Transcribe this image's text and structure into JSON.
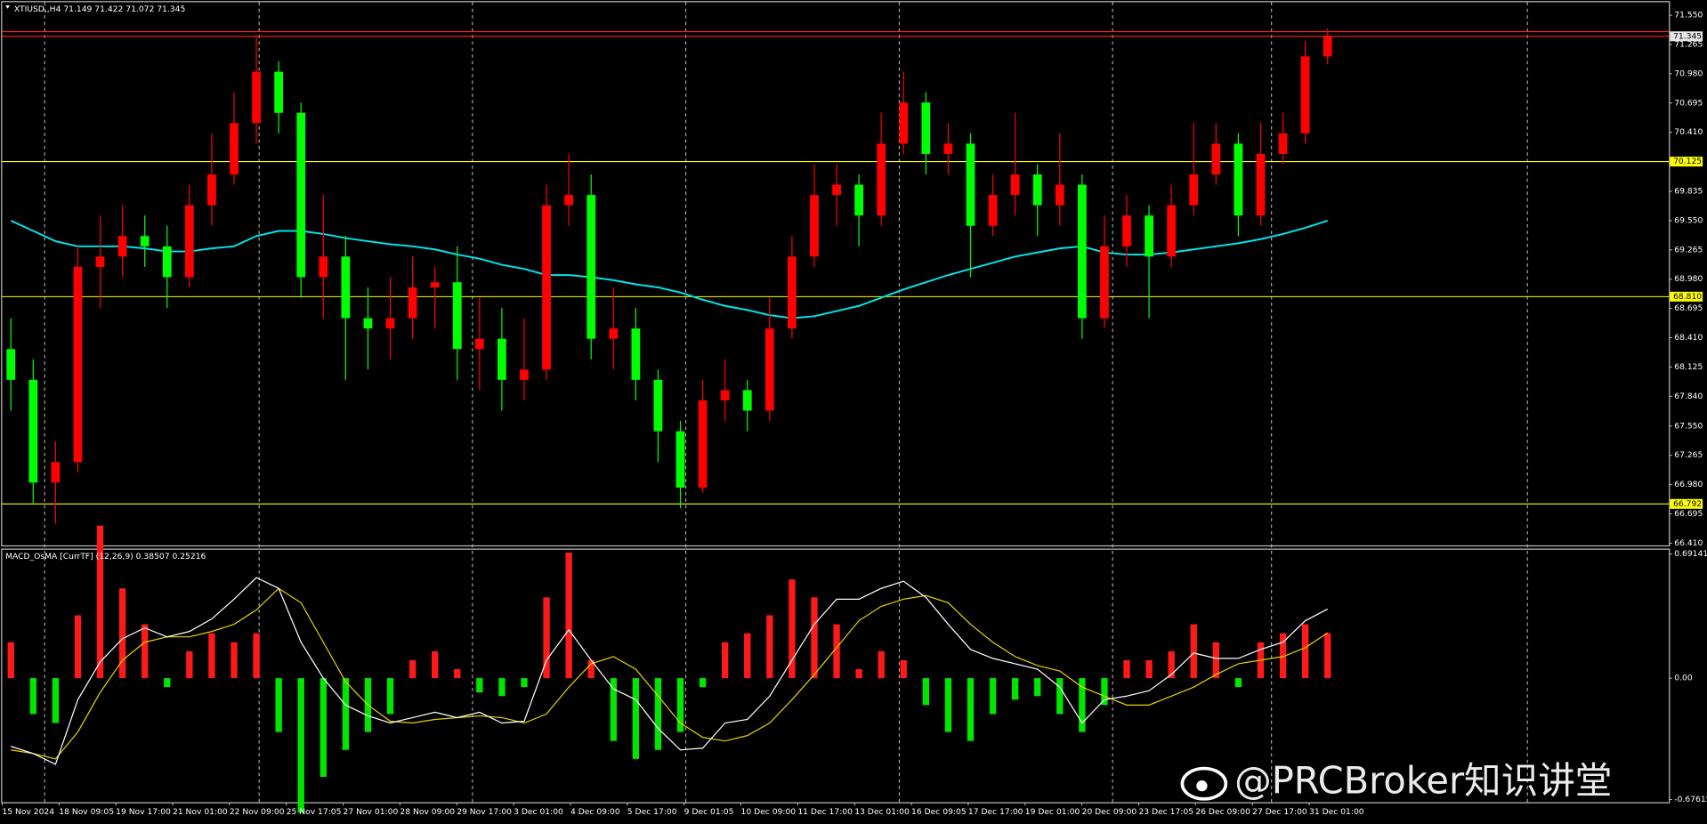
{
  "chart_data": {
    "type": "candlestick",
    "symbol": "XTIUSD,,H4",
    "up_color": "#ff0000",
    "down_color": "#00ff00",
    "open": [
      68.3,
      68.0,
      67.0,
      67.2,
      69.1,
      69.2,
      69.4,
      69.3,
      69.0,
      69.7,
      70.0,
      70.5,
      71.0,
      70.6,
      69.0,
      69.2,
      68.6,
      68.5,
      68.6,
      68.9,
      68.95,
      68.3,
      68.4,
      68.0,
      68.1,
      69.7,
      69.8,
      68.4,
      68.5,
      68.0,
      67.5,
      66.95,
      67.8,
      67.9,
      67.7,
      68.5,
      69.2,
      69.8,
      69.9,
      69.6,
      70.3,
      70.7,
      70.2,
      70.3,
      69.5,
      69.8,
      70.0,
      69.7,
      69.9,
      68.6,
      69.3,
      69.6,
      69.2,
      69.7,
      70.0,
      70.3,
      69.6,
      70.2,
      70.4,
      71.149
    ],
    "high": [
      68.6,
      68.2,
      67.4,
      69.3,
      69.6,
      69.7,
      69.6,
      69.5,
      69.9,
      70.4,
      70.8,
      71.35,
      71.1,
      70.7,
      69.8,
      69.4,
      68.9,
      69.0,
      69.2,
      69.1,
      69.3,
      68.8,
      68.7,
      68.6,
      69.9,
      70.2,
      70.0,
      68.9,
      68.7,
      68.1,
      67.6,
      68.0,
      68.2,
      68.0,
      68.8,
      69.4,
      70.1,
      70.1,
      70.0,
      70.6,
      71.0,
      70.8,
      70.5,
      70.4,
      70.0,
      70.6,
      70.1,
      70.4,
      70.0,
      69.6,
      69.8,
      69.7,
      69.9,
      70.5,
      70.5,
      70.4,
      70.5,
      70.6,
      71.3,
      71.422
    ],
    "low": [
      67.7,
      66.8,
      66.6,
      67.1,
      68.7,
      69.0,
      69.1,
      68.7,
      68.9,
      69.5,
      69.9,
      70.3,
      70.4,
      68.8,
      68.6,
      68.0,
      68.1,
      68.2,
      68.4,
      68.5,
      68.0,
      67.9,
      67.7,
      67.8,
      68.0,
      69.5,
      68.2,
      68.1,
      67.8,
      67.2,
      66.75,
      66.9,
      67.6,
      67.5,
      67.6,
      68.4,
      69.1,
      69.5,
      69.3,
      69.5,
      70.2,
      70.0,
      70.0,
      69.0,
      69.4,
      69.6,
      69.4,
      69.5,
      68.4,
      68.5,
      69.1,
      68.6,
      69.1,
      69.6,
      69.9,
      69.4,
      69.5,
      70.1,
      70.3,
      71.072
    ],
    "close": [
      68.0,
      67.0,
      67.2,
      69.1,
      69.2,
      69.4,
      69.3,
      69.0,
      69.7,
      70.0,
      70.5,
      71.0,
      70.6,
      69.0,
      69.2,
      68.6,
      68.5,
      68.6,
      68.9,
      68.95,
      68.3,
      68.4,
      68.0,
      68.1,
      69.7,
      69.8,
      68.4,
      68.5,
      68.0,
      67.5,
      66.95,
      67.8,
      67.9,
      67.7,
      68.5,
      69.2,
      69.8,
      69.9,
      69.6,
      70.3,
      70.7,
      70.2,
      70.3,
      69.5,
      69.8,
      70.0,
      69.7,
      69.9,
      68.6,
      69.3,
      69.6,
      69.2,
      69.7,
      70.0,
      70.3,
      69.6,
      70.2,
      70.4,
      71.149,
      71.345
    ],
    "ma": {
      "color": "#00e5ee",
      "values": [
        69.55,
        69.45,
        69.35,
        69.3,
        69.3,
        69.3,
        69.28,
        69.25,
        69.25,
        69.28,
        69.3,
        69.4,
        69.45,
        69.45,
        69.42,
        69.38,
        69.35,
        69.32,
        69.3,
        69.27,
        69.22,
        69.18,
        69.12,
        69.08,
        69.02,
        69.02,
        69.0,
        68.97,
        68.93,
        68.9,
        68.85,
        68.78,
        68.72,
        68.68,
        68.63,
        68.6,
        68.62,
        68.67,
        68.72,
        68.8,
        68.88,
        68.95,
        69.02,
        69.08,
        69.14,
        69.2,
        69.24,
        69.28,
        69.3,
        69.24,
        69.22,
        69.22,
        69.24,
        69.27,
        69.3,
        69.33,
        69.37,
        69.42,
        69.48,
        69.55
      ]
    },
    "levels": [
      {
        "value": 70.125,
        "label": "70.125"
      },
      {
        "value": 68.81,
        "label": "68.810"
      },
      {
        "value": 66.792,
        "label": "66.792"
      }
    ],
    "level_color": "#ffff00",
    "ask": 71.39,
    "ylim": [
      66.378,
      71.677
    ],
    "yticks": [
      {
        "value": 71.55,
        "label": "71.550"
      },
      {
        "value": 71.265,
        "label": "71.265"
      },
      {
        "value": 70.98,
        "label": "70.980"
      },
      {
        "value": 70.695,
        "label": "70.695"
      },
      {
        "value": 70.41,
        "label": "70.410"
      },
      {
        "value": 69.835,
        "label": "69.835"
      },
      {
        "value": 69.55,
        "label": "69.550"
      },
      {
        "value": 69.265,
        "label": "69.265"
      },
      {
        "value": 68.98,
        "label": "68.980"
      },
      {
        "value": 68.695,
        "label": "68.695"
      },
      {
        "value": 68.41,
        "label": "68.410"
      },
      {
        "value": 68.125,
        "label": "68.125"
      },
      {
        "value": 67.84,
        "label": "67.840"
      },
      {
        "value": 67.55,
        "label": "67.550"
      },
      {
        "value": 67.265,
        "label": "67.265"
      },
      {
        "value": 66.98,
        "label": "66.980"
      },
      {
        "value": 66.695,
        "label": "66.695"
      },
      {
        "value": 66.41,
        "label": "66.410"
      }
    ],
    "time_labels": [
      "15 Nov 2024",
      "18 Nov 09:05",
      "19 Nov 17:00",
      "21 Nov 01:00",
      "22 Nov 09:00",
      "25 Nov 17:05",
      "27 Nov 01:00",
      "28 Nov 09:00",
      "29 Nov 17:00",
      "3 Dec 01:00",
      "4 Dec 09:00",
      "5 Dec 17:00",
      "9 Dec 01:05",
      "10 Dec 09:00",
      "11 Dec 17:00",
      "13 Dec 01:00",
      "16 Dec 09:05",
      "17 Dec 17:00",
      "19 Dec 01:00",
      "20 Dec 09:00",
      "23 Dec 17:05",
      "26 Dec 09:00",
      "27 Dec 17:00",
      "31 Dec 01:00"
    ],
    "indicator": {
      "type": "macd_osma",
      "name": "MACD_OsMA [CurrTF] (12,26,9)",
      "pos_color": "#ff1a1a",
      "neg_color": "#00e600",
      "macd_color": "#ffffff",
      "signal_color": "#e6d200",
      "histogram": [
        0.2,
        -0.2,
        -0.25,
        0.35,
        0.85,
        0.5,
        0.3,
        -0.05,
        0.15,
        0.25,
        0.2,
        0.25,
        -0.3,
        -0.75,
        -0.55,
        -0.4,
        -0.3,
        -0.2,
        0.1,
        0.15,
        0.05,
        -0.08,
        -0.1,
        -0.05,
        0.45,
        0.7,
        0.1,
        -0.35,
        -0.45,
        -0.4,
        -0.3,
        -0.05,
        0.2,
        0.25,
        0.35,
        0.55,
        0.45,
        0.3,
        0.05,
        0.15,
        0.1,
        -0.15,
        -0.3,
        -0.35,
        -0.2,
        -0.12,
        -0.1,
        -0.2,
        -0.3,
        -0.15,
        0.1,
        0.1,
        0.15,
        0.3,
        0.2,
        -0.05,
        0.2,
        0.25,
        0.3,
        0.25
      ],
      "macd": [
        -0.38,
        -0.42,
        -0.48,
        -0.12,
        0.09,
        0.22,
        0.28,
        0.23,
        0.26,
        0.33,
        0.44,
        0.56,
        0.5,
        0.2,
        0,
        -0.15,
        -0.21,
        -0.25,
        -0.22,
        -0.19,
        -0.22,
        -0.19,
        -0.25,
        -0.24,
        0.1,
        0.27,
        0.1,
        -0.06,
        -0.12,
        -0.28,
        -0.4,
        -0.39,
        -0.25,
        -0.23,
        -0.1,
        0.1,
        0.3,
        0.44,
        0.44,
        0.5,
        0.54,
        0.45,
        0.3,
        0.16,
        0.11,
        0.08,
        0.05,
        -0.05,
        -0.25,
        -0.12,
        -0.1,
        -0.07,
        0.02,
        0.14,
        0.11,
        0.11,
        0.16,
        0.2,
        0.32,
        0.38507
      ],
      "signal": [
        -0.4,
        -0.42,
        -0.45,
        -0.3,
        -0.08,
        0.1,
        0.2,
        0.23,
        0.23,
        0.26,
        0.3,
        0.38,
        0.5,
        0.42,
        0.2,
        -0.02,
        -0.15,
        -0.24,
        -0.25,
        -0.23,
        -0.22,
        -0.21,
        -0.22,
        -0.25,
        -0.2,
        -0.05,
        0.08,
        0.12,
        0.05,
        -0.1,
        -0.25,
        -0.33,
        -0.35,
        -0.32,
        -0.25,
        -0.12,
        0.02,
        0.17,
        0.32,
        0.4,
        0.44,
        0.46,
        0.42,
        0.3,
        0.2,
        0.12,
        0.07,
        0.04,
        -0.05,
        -0.1,
        -0.15,
        -0.15,
        -0.1,
        -0.05,
        0.02,
        0.08,
        0.1,
        0.12,
        0.17,
        0.25216
      ],
      "ylim": [
        -0.67615,
        0.69141
      ],
      "yticks": [
        0.69141,
        {
          "value": 0,
          "label": "0.00"
        },
        -0.67615
      ]
    }
  },
  "watermark": "@PRCBroker知识讲堂"
}
